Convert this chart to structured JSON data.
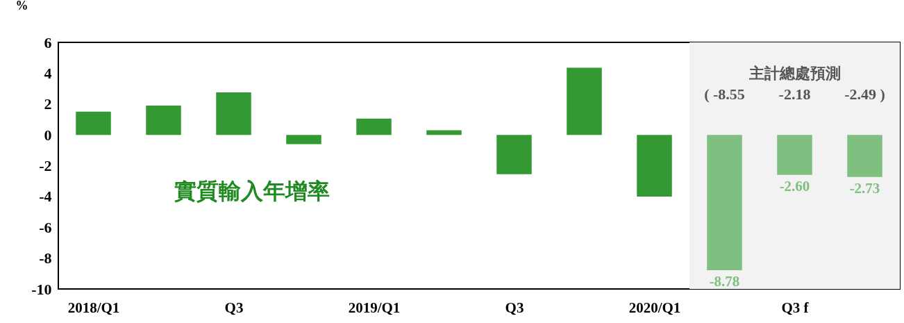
{
  "chart_data": {
    "type": "bar",
    "ylabel": "%",
    "categories": [
      "2018/Q1",
      null,
      "Q3",
      null,
      "2019/Q1",
      null,
      "Q3",
      null,
      "2020/Q1",
      null,
      "Q3 f",
      null
    ],
    "series": [
      {
        "color": "#339933",
        "values": [
          1.5,
          1.9,
          2.75,
          -0.6,
          1.05,
          0.3,
          -2.55,
          4.35,
          -4.0,
          null,
          null,
          null
        ]
      },
      {
        "color": "#7fbf7f",
        "values": [
          null,
          null,
          null,
          null,
          null,
          null,
          null,
          null,
          null,
          -8.78,
          -2.6,
          -2.73
        ],
        "value_labels": [
          null,
          null,
          null,
          null,
          null,
          null,
          null,
          null,
          null,
          "-8.78",
          "-2.60",
          "-2.73"
        ]
      }
    ],
    "ylim": [
      -10,
      6
    ],
    "yticks": [
      -10,
      -8,
      -6,
      -4,
      -2,
      0,
      2,
      4,
      6
    ],
    "grid": false,
    "legend": false,
    "annotations": [
      "實質輸入年增率",
      "主計總處預測",
      "( -8.55",
      "-2.18",
      "-2.49 )"
    ]
  }
}
